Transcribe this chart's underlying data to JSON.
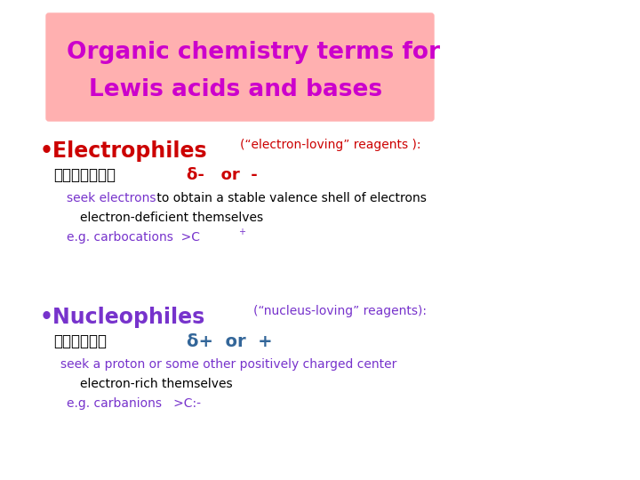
{
  "bg_color": "#ffffff",
  "title_box_color": "#ffb0b0",
  "title_line1": "Organic chemistry terms for",
  "title_line2": "Lewis acids and bases",
  "title_color": "#cc00cc",
  "title_fontsize": 19,
  "electro_bullet": "•",
  "electro_label": "Electrophiles",
  "electro_label_color": "#cc0000",
  "electro_label_fontsize": 17,
  "electro_subtext": "(“electron-loving” reagents ):",
  "electro_subtext_color": "#cc0000",
  "electro_subtext_fontsize": 10,
  "electro_japanese": "（求電子試薬）",
  "electro_japanese_color": "#000000",
  "electro_japanese_fontsize": 12,
  "electro_delta": "δ•   or •",
  "electro_delta_color": "#cc0000",
  "electro_delta_fontsize": 13,
  "electro_seek_colored": "seek electrons",
  "electro_seek_rest": " to obtain a stable valence shell of electrons",
  "electro_seek_color": "#7733cc",
  "electro_seek_fontsize": 10,
  "electro_deficient": "electron-deficient themselves",
  "electro_deficient_color": "#000000",
  "electro_deficient_fontsize": 10,
  "electro_eg": "e.g. carbocations  >C",
  "electro_eg_sup": "+",
  "electro_eg_color": "#7733cc",
  "electro_eg_fontsize": 10,
  "nucleo_bullet": "•",
  "nucleo_label": "Nucleophiles",
  "nucleo_label_color": "#7733cc",
  "nucleo_label_fontsize": 17,
  "nucleo_subtext": "(“nucleus-loving” reagents):",
  "nucleo_subtext_color": "#7733cc",
  "nucleo_subtext_fontsize": 10,
  "nucleo_japanese": "（求核試薬）",
  "nucleo_japanese_color": "#000000",
  "nucleo_japanese_fontsize": 12,
  "nucleo_delta": "δ+  or  +",
  "nucleo_delta_color": "#336699",
  "nucleo_delta_fontsize": 14,
  "nucleo_seek": "seek a proton or some other positively charged center",
  "nucleo_seek_color": "#7733cc",
  "nucleo_seek_fontsize": 10,
  "nucleo_rich": "electron-rich themselves",
  "nucleo_rich_color": "#000000",
  "nucleo_rich_fontsize": 10,
  "nucleo_eg": "e.g. carbanions   >C:-",
  "nucleo_eg_color": "#7733cc",
  "nucleo_eg_fontsize": 10
}
